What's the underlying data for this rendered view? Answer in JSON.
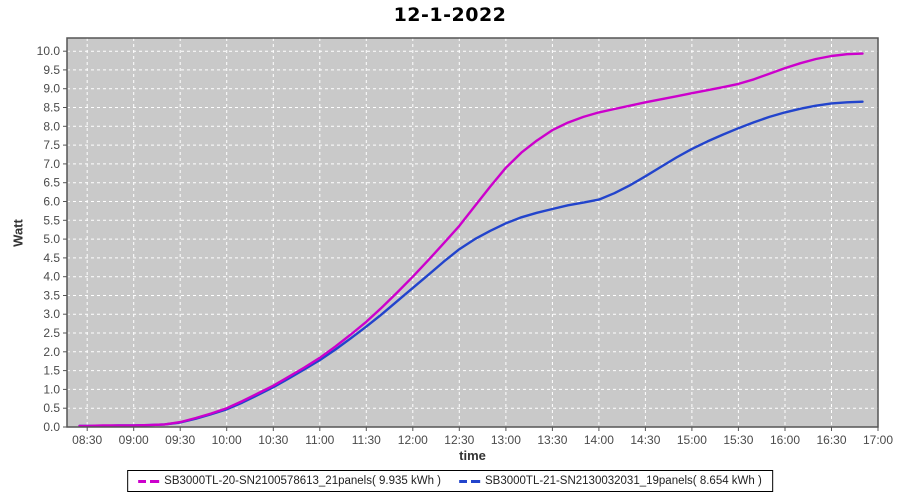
{
  "page": {
    "title": "12-1-2022"
  },
  "axis": {
    "x_label": "time",
    "y_label": "Watt"
  },
  "chart_data": {
    "type": "line",
    "title": "12-1-2022",
    "xlabel": "time",
    "ylabel": "Watt",
    "grid": true,
    "legend_position": "bottom",
    "xlim": [
      8.283,
      17.0
    ],
    "ylim": [
      0,
      10.35
    ],
    "x_tick_labels": [
      "08:30",
      "09:00",
      "09:30",
      "10:00",
      "10:30",
      "11:00",
      "11:30",
      "12:00",
      "12:30",
      "13:00",
      "13:30",
      "14:00",
      "14:30",
      "15:00",
      "15:30",
      "16:00",
      "16:30",
      "17:00"
    ],
    "x_tick_hours": [
      8.5,
      9,
      9.5,
      10,
      10.5,
      11,
      11.5,
      12,
      12.5,
      13,
      13.5,
      14,
      14.5,
      15,
      15.5,
      16,
      16.5,
      17
    ],
    "y_tick_labels": [
      "0.0",
      "0.5",
      "1.0",
      "1.5",
      "2.0",
      "2.5",
      "3.0",
      "3.5",
      "4.0",
      "4.5",
      "5.0",
      "5.5",
      "6.0",
      "6.5",
      "7.0",
      "7.5",
      "8.0",
      "8.5",
      "9.0",
      "9.5",
      "10.0"
    ],
    "y_tick_values": [
      0,
      0.5,
      1,
      1.5,
      2,
      2.5,
      3,
      3.5,
      4,
      4.5,
      5,
      5.5,
      6,
      6.5,
      7,
      7.5,
      8,
      8.5,
      9,
      9.5,
      10
    ],
    "colors": {
      "plot_bg": "#c9c9c9",
      "plot_border": "#555555",
      "grid": "#ffffff",
      "tick_text": "#4a4a4a",
      "axis_label": "#333333",
      "series1": "#cc00cc",
      "series2": "#2244cc"
    },
    "x_hours": [
      8.417,
      8.5,
      8.667,
      8.833,
      9.0,
      9.167,
      9.333,
      9.5,
      9.667,
      9.833,
      10.0,
      10.167,
      10.333,
      10.5,
      10.667,
      10.833,
      11.0,
      11.167,
      11.333,
      11.5,
      11.667,
      11.833,
      12.0,
      12.167,
      12.333,
      12.5,
      12.667,
      12.833,
      13.0,
      13.167,
      13.333,
      13.5,
      13.667,
      13.833,
      14.0,
      14.167,
      14.333,
      14.5,
      14.667,
      14.833,
      15.0,
      15.167,
      15.333,
      15.5,
      15.667,
      15.833,
      16.0,
      16.167,
      16.333,
      16.5,
      16.667,
      16.833
    ],
    "series": [
      {
        "name": "SB3000TL-20-SN2100578613_21panels( 9.935 kWh )",
        "color": "#cc00cc",
        "total_kwh": 9.935,
        "values": [
          0.03,
          0.03,
          0.04,
          0.04,
          0.04,
          0.05,
          0.07,
          0.13,
          0.24,
          0.36,
          0.5,
          0.69,
          0.89,
          1.1,
          1.34,
          1.58,
          1.84,
          2.14,
          2.46,
          2.8,
          3.18,
          3.58,
          4.0,
          4.44,
          4.89,
          5.35,
          5.88,
          6.4,
          6.9,
          7.3,
          7.62,
          7.9,
          8.1,
          8.25,
          8.37,
          8.46,
          8.55,
          8.64,
          8.72,
          8.8,
          8.88,
          8.96,
          9.04,
          9.13,
          9.25,
          9.4,
          9.55,
          9.68,
          9.79,
          9.87,
          9.92,
          9.935
        ]
      },
      {
        "name": "SB3000TL-21-SN2130032031_19panels( 8.654 kWh )",
        "color": "#2244cc",
        "total_kwh": 8.654,
        "values": [
          0.03,
          0.03,
          0.03,
          0.04,
          0.04,
          0.05,
          0.07,
          0.12,
          0.22,
          0.34,
          0.47,
          0.65,
          0.85,
          1.06,
          1.29,
          1.53,
          1.78,
          2.06,
          2.36,
          2.67,
          3.0,
          3.35,
          3.7,
          4.05,
          4.4,
          4.73,
          5.0,
          5.22,
          5.42,
          5.58,
          5.7,
          5.8,
          5.9,
          5.97,
          6.05,
          6.22,
          6.43,
          6.67,
          6.92,
          7.17,
          7.4,
          7.6,
          7.78,
          7.95,
          8.11,
          8.25,
          8.37,
          8.47,
          8.55,
          8.61,
          8.64,
          8.654
        ]
      }
    ]
  }
}
